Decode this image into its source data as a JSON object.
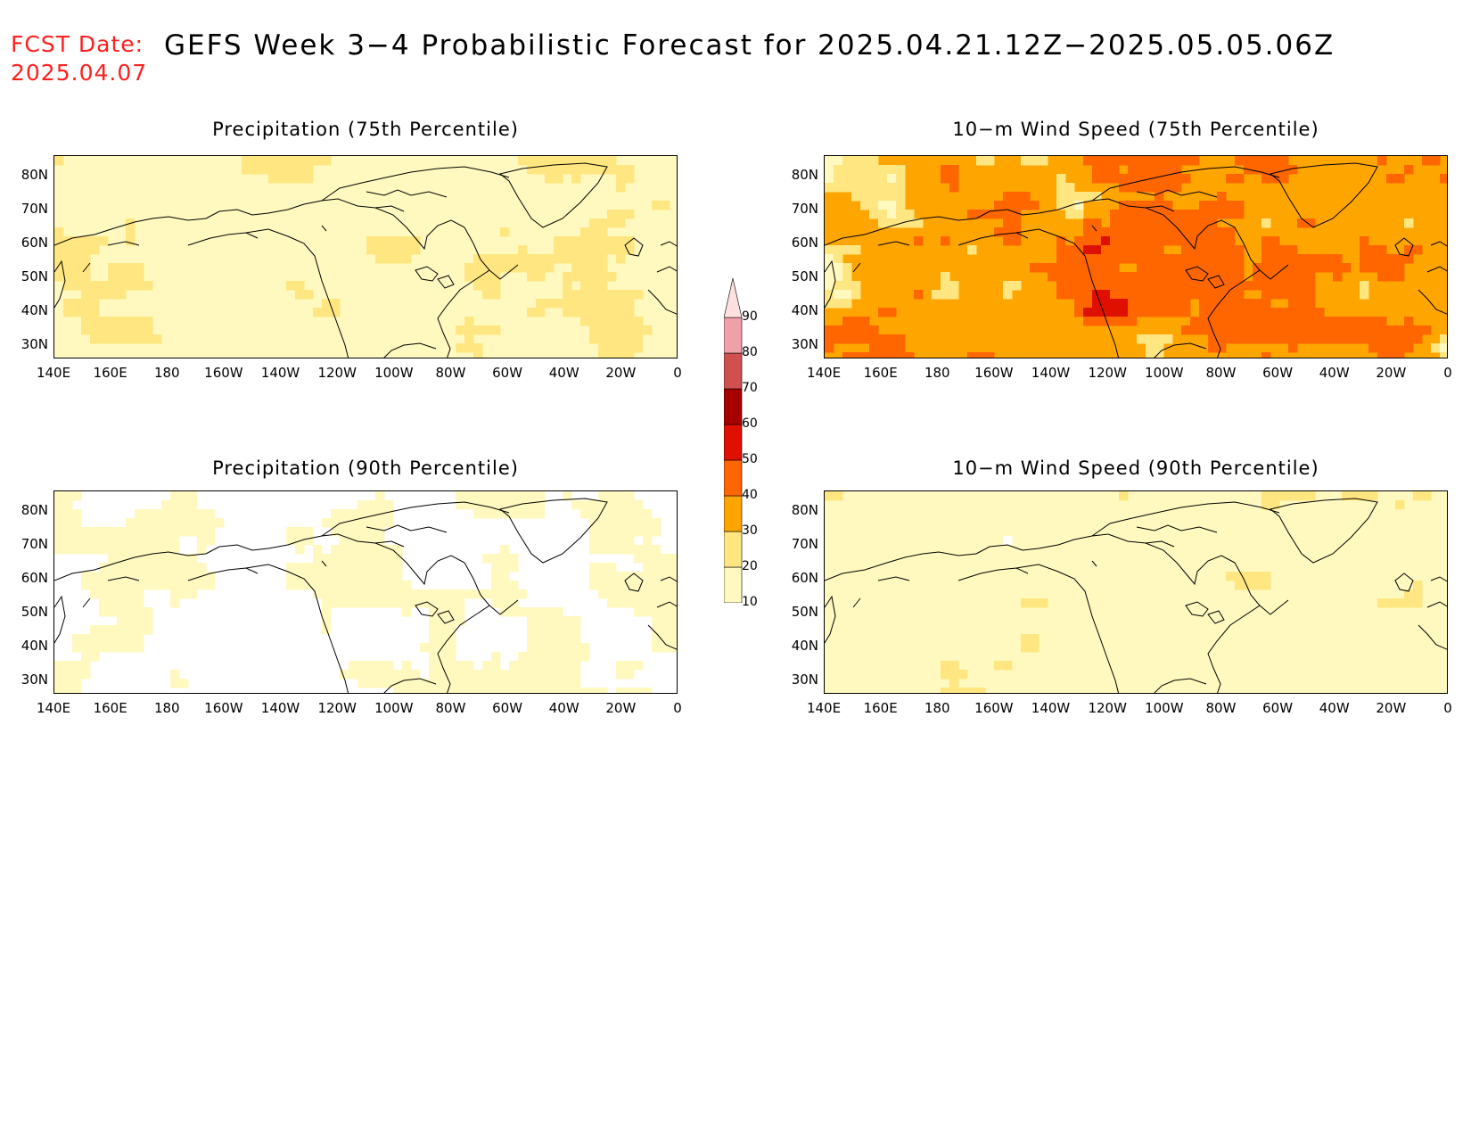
{
  "header": {
    "fcst_label": "FCST Date:",
    "fcst_date": "2025.04.07",
    "title": "GEFS Week 3−4 Probabilistic Forecast for 2025.04.21.12Z−2025.05.05.06Z"
  },
  "panels": [
    {
      "title": "Precipitation (75th Percentile)",
      "field": "precip75"
    },
    {
      "title": "10−m Wind Speed (75th Percentile)",
      "field": "wind75"
    },
    {
      "title": "Precipitation (90th Percentile)",
      "field": "precip90"
    },
    {
      "title": "10−m Wind Speed (90th Percentile)",
      "field": "wind90"
    }
  ],
  "lat_labels": [
    "80N",
    "70N",
    "60N",
    "50N",
    "40N",
    "30N"
  ],
  "lon_labels": [
    "140E",
    "160E",
    "180",
    "160W",
    "140W",
    "120W",
    "100W",
    "80W",
    "60W",
    "40W",
    "20W",
    "0"
  ],
  "colorbar": {
    "levels": [
      "10",
      "20",
      "30",
      "40",
      "50",
      "60",
      "70",
      "80",
      "90"
    ],
    "colors": [
      "#fff9c0",
      "#ffe680",
      "#ffa500",
      "#ff6600",
      "#e01000",
      "#a80000",
      "#d05050",
      "#f0a0a8",
      "#ffe0e0"
    ]
  }
}
